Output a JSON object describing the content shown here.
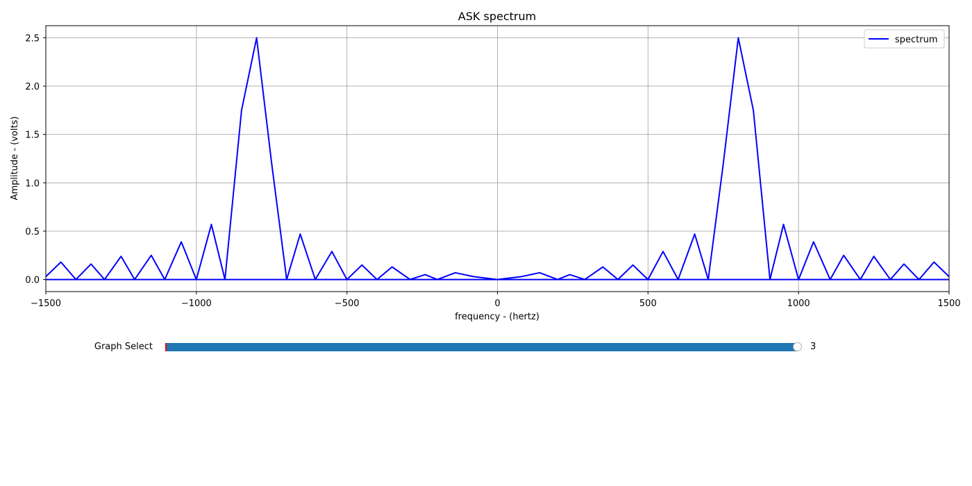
{
  "chart_data": {
    "type": "line",
    "title": "ASK spectrum",
    "xlabel": "frequency - (hertz)",
    "ylabel": "Amplitude - (volts)",
    "xlim": [
      -1500,
      1500
    ],
    "ylim": [
      -0.125,
      2.625
    ],
    "x_ticks": [
      -1500,
      -1000,
      -500,
      0,
      500,
      1000,
      1500
    ],
    "x_tick_labels": [
      "−1500",
      "−1000",
      "−500",
      "0",
      "500",
      "1000",
      "1500"
    ],
    "y_ticks": [
      0.0,
      0.5,
      1.0,
      1.5,
      2.0,
      2.5
    ],
    "y_tick_labels": [
      "0.0",
      "0.5",
      "1.0",
      "1.5",
      "2.0",
      "2.5"
    ],
    "grid": true,
    "legend_position": "top-right",
    "series": [
      {
        "name": "spectrum",
        "color": "#0000ff",
        "x": [
          -1500,
          -1450,
          -1400,
          -1350,
          -1305,
          -1250,
          -1205,
          -1150,
          -1105,
          -1050,
          -1000,
          -950,
          -905,
          -850,
          -800,
          -750,
          -700,
          -655,
          -605,
          -550,
          -500,
          -450,
          -400,
          -350,
          -290,
          -240,
          -200,
          -140,
          -80,
          0,
          80,
          140,
          200,
          240,
          290,
          350,
          400,
          450,
          500,
          550,
          600,
          655,
          700,
          750,
          800,
          850,
          905,
          950,
          1000,
          1050,
          1105,
          1150,
          1205,
          1250,
          1305,
          1350,
          1400,
          1450,
          1500
        ],
        "y": [
          0.03,
          0.18,
          0.0,
          0.16,
          0.0,
          0.24,
          0.0,
          0.25,
          0.0,
          0.39,
          0.0,
          0.57,
          0.0,
          1.75,
          2.5,
          1.2,
          0.0,
          0.47,
          0.0,
          0.29,
          0.0,
          0.15,
          0.0,
          0.13,
          0.0,
          0.05,
          0.0,
          0.07,
          0.03,
          0.0,
          0.03,
          0.07,
          0.0,
          0.05,
          0.0,
          0.13,
          0.0,
          0.15,
          0.0,
          0.29,
          0.0,
          0.47,
          0.0,
          1.2,
          2.5,
          1.75,
          0.0,
          0.57,
          0.0,
          0.39,
          0.0,
          0.25,
          0.0,
          0.24,
          0.0,
          0.16,
          0.0,
          0.18,
          0.03
        ]
      },
      {
        "name": "",
        "color": "#0000ff",
        "x": [
          -1500,
          1500
        ],
        "y": [
          0.0,
          0.0
        ]
      }
    ]
  },
  "slider": {
    "label": "Graph Select",
    "min": 1,
    "max": 3,
    "value": 3,
    "value_text": "3",
    "fill_color": "#1f77b4",
    "initial_marker_color": "#ff0000"
  },
  "colors": {
    "grid": "#b0b0b0",
    "axes": "#000000",
    "legend_border": "#cccccc"
  }
}
